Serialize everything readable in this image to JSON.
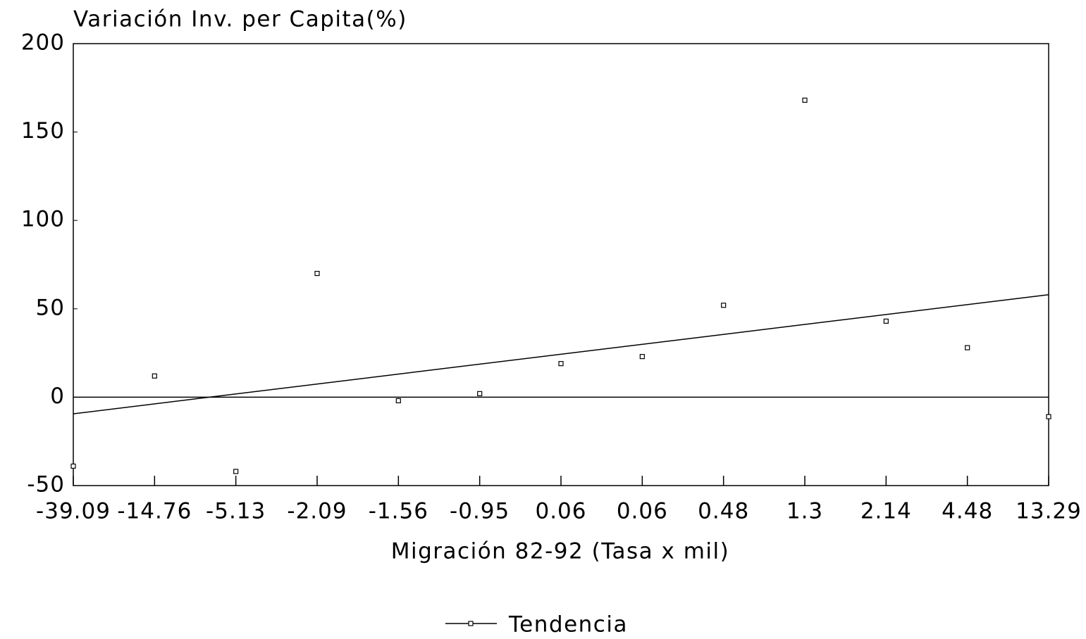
{
  "chart_data": {
    "type": "scatter",
    "title": "Variación Inv. per Capita(%)",
    "x_label": "Migración 82-92 (Tasa x mil)",
    "categories": [
      "-39.09",
      "-14.76",
      "-5.13",
      "-2.09",
      "-1.56",
      "-0.95",
      "0.06",
      "0.06",
      "0.48",
      "1.3",
      "2.14",
      "4.48",
      "13.29"
    ],
    "series": [
      {
        "name": "Tendencia",
        "color": "#000000",
        "values": [
          -39,
          12,
          -42,
          70,
          -2,
          2,
          19,
          23,
          52,
          168,
          43,
          28,
          -11
        ]
      }
    ],
    "trendline": [
      -9.4,
      58
    ],
    "ylim": [
      -50,
      200
    ],
    "yticks": [
      -50,
      0,
      50,
      100,
      150,
      200
    ],
    "legend": "bottom"
  }
}
